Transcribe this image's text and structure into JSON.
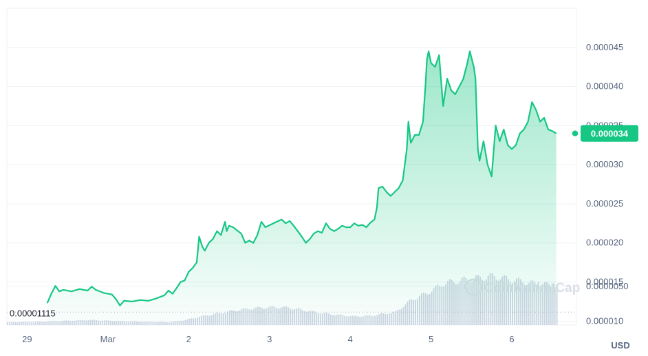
{
  "chart_data": {
    "type": "area",
    "currency": "USD",
    "x_tick_labels": [
      "29",
      "Mar",
      "2",
      "3",
      "4",
      "5",
      "6"
    ],
    "x_tick_positions": [
      0.25,
      1.25,
      2.25,
      3.25,
      4.25,
      5.25,
      6.25
    ],
    "y_tick_labels": [
      "0.000010",
      "0.000015",
      "0.000020",
      "0.000025",
      "0.000030",
      "0.000035",
      "0.000040",
      "0.000045"
    ],
    "y_tick_values": [
      1e-05,
      1.5e-05,
      2e-05,
      2.5e-05,
      3e-05,
      3.5e-05,
      4e-05,
      4.5e-05
    ],
    "ylim": [
      9.5e-06,
      5e-05
    ],
    "xlim": [
      0,
      7.05
    ],
    "reference_price_label": "0.00001115",
    "reference_price": 1.115e-05,
    "current_price_label": "0.000034",
    "current_price": 3.4e-05,
    "volume_axis_label": "0.0000050",
    "volume_axis_value": 5e-06,
    "volume_ylim": [
      0,
      7.5e-06
    ],
    "watermark": "CoinMarketCap",
    "price_series": [
      [
        0.5,
        1.23e-05
      ],
      [
        0.55,
        1.35e-05
      ],
      [
        0.6,
        1.45e-05
      ],
      [
        0.65,
        1.38e-05
      ],
      [
        0.7,
        1.4e-05
      ],
      [
        0.8,
        1.38e-05
      ],
      [
        0.9,
        1.41e-05
      ],
      [
        1.0,
        1.39e-05
      ],
      [
        1.05,
        1.44e-05
      ],
      [
        1.1,
        1.4e-05
      ],
      [
        1.2,
        1.36e-05
      ],
      [
        1.3,
        1.34e-05
      ],
      [
        1.35,
        1.28e-05
      ],
      [
        1.4,
        1.2e-05
      ],
      [
        1.45,
        1.26e-05
      ],
      [
        1.55,
        1.25e-05
      ],
      [
        1.65,
        1.27e-05
      ],
      [
        1.75,
        1.26e-05
      ],
      [
        1.85,
        1.29e-05
      ],
      [
        1.95,
        1.33e-05
      ],
      [
        2.0,
        1.39e-05
      ],
      [
        2.05,
        1.35e-05
      ],
      [
        2.1,
        1.42e-05
      ],
      [
        2.15,
        1.5e-05
      ],
      [
        2.2,
        1.52e-05
      ],
      [
        2.25,
        1.63e-05
      ],
      [
        2.3,
        1.68e-05
      ],
      [
        2.35,
        1.75e-05
      ],
      [
        2.38,
        2.08e-05
      ],
      [
        2.42,
        1.95e-05
      ],
      [
        2.45,
        1.9e-05
      ],
      [
        2.5,
        2e-05
      ],
      [
        2.55,
        2.05e-05
      ],
      [
        2.6,
        2.15e-05
      ],
      [
        2.65,
        2.1e-05
      ],
      [
        2.7,
        2.27e-05
      ],
      [
        2.72,
        2.15e-05
      ],
      [
        2.75,
        2.22e-05
      ],
      [
        2.8,
        2.2e-05
      ],
      [
        2.85,
        2.16e-05
      ],
      [
        2.9,
        2.12e-05
      ],
      [
        2.95,
        2e-05
      ],
      [
        3.0,
        2.03e-05
      ],
      [
        3.05,
        2e-05
      ],
      [
        3.1,
        2.1e-05
      ],
      [
        3.15,
        2.27e-05
      ],
      [
        3.2,
        2.2e-05
      ],
      [
        3.3,
        2.25e-05
      ],
      [
        3.4,
        2.3e-05
      ],
      [
        3.45,
        2.25e-05
      ],
      [
        3.5,
        2.28e-05
      ],
      [
        3.55,
        2.22e-05
      ],
      [
        3.6,
        2.15e-05
      ],
      [
        3.65,
        2.08e-05
      ],
      [
        3.7,
        2e-05
      ],
      [
        3.75,
        2.05e-05
      ],
      [
        3.8,
        2.12e-05
      ],
      [
        3.85,
        2.15e-05
      ],
      [
        3.9,
        2.13e-05
      ],
      [
        3.95,
        2.25e-05
      ],
      [
        4.0,
        2.18e-05
      ],
      [
        4.05,
        2.15e-05
      ],
      [
        4.1,
        2.18e-05
      ],
      [
        4.15,
        2.22e-05
      ],
      [
        4.2,
        2.2e-05
      ],
      [
        4.25,
        2.2e-05
      ],
      [
        4.3,
        2.25e-05
      ],
      [
        4.35,
        2.22e-05
      ],
      [
        4.4,
        2.23e-05
      ],
      [
        4.45,
        2.2e-05
      ],
      [
        4.5,
        2.26e-05
      ],
      [
        4.55,
        2.3e-05
      ],
      [
        4.58,
        2.45e-05
      ],
      [
        4.6,
        2.7e-05
      ],
      [
        4.65,
        2.72e-05
      ],
      [
        4.7,
        2.65e-05
      ],
      [
        4.75,
        2.6e-05
      ],
      [
        4.8,
        2.65e-05
      ],
      [
        4.85,
        2.7e-05
      ],
      [
        4.9,
        2.8e-05
      ],
      [
        4.95,
        3.2e-05
      ],
      [
        4.97,
        3.55e-05
      ],
      [
        5.0,
        3.28e-05
      ],
      [
        5.05,
        3.38e-05
      ],
      [
        5.1,
        3.38e-05
      ],
      [
        5.15,
        3.55e-05
      ],
      [
        5.18,
        4e-05
      ],
      [
        5.2,
        4.35e-05
      ],
      [
        5.22,
        4.45e-05
      ],
      [
        5.25,
        4.3e-05
      ],
      [
        5.3,
        4.25e-05
      ],
      [
        5.35,
        4.4e-05
      ],
      [
        5.38,
        4e-05
      ],
      [
        5.4,
        3.75e-05
      ],
      [
        5.45,
        4.1e-05
      ],
      [
        5.5,
        3.95e-05
      ],
      [
        5.55,
        3.9e-05
      ],
      [
        5.6,
        4e-05
      ],
      [
        5.65,
        4.1e-05
      ],
      [
        5.7,
        4.3e-05
      ],
      [
        5.73,
        4.45e-05
      ],
      [
        5.78,
        4.25e-05
      ],
      [
        5.8,
        4.1e-05
      ],
      [
        5.83,
        3.2e-05
      ],
      [
        5.85,
        3.05e-05
      ],
      [
        5.9,
        3.3e-05
      ],
      [
        5.95,
        3e-05
      ],
      [
        6.0,
        2.85e-05
      ],
      [
        6.05,
        3.5e-05
      ],
      [
        6.1,
        3.3e-05
      ],
      [
        6.15,
        3.45e-05
      ],
      [
        6.2,
        3.25e-05
      ],
      [
        6.25,
        3.2e-05
      ],
      [
        6.3,
        3.25e-05
      ],
      [
        6.35,
        3.4e-05
      ],
      [
        6.4,
        3.45e-05
      ],
      [
        6.45,
        3.55e-05
      ],
      [
        6.5,
        3.8e-05
      ],
      [
        6.55,
        3.7e-05
      ],
      [
        6.6,
        3.55e-05
      ],
      [
        6.65,
        3.6e-05
      ],
      [
        6.7,
        3.45e-05
      ],
      [
        6.75,
        3.43e-05
      ],
      [
        6.8,
        3.4e-05
      ]
    ],
    "volume_series": [
      [
        0.0,
        4e-07
      ],
      [
        0.5,
        5e-07
      ],
      [
        1.0,
        7e-07
      ],
      [
        1.5,
        5e-07
      ],
      [
        2.0,
        4e-07
      ],
      [
        2.2,
        7e-07
      ],
      [
        2.4,
        1.2e-06
      ],
      [
        2.8,
        2e-06
      ],
      [
        3.0,
        2.3e-06
      ],
      [
        3.3,
        2.5e-06
      ],
      [
        3.5,
        2.4e-06
      ],
      [
        3.8,
        1.8e-06
      ],
      [
        4.0,
        1.5e-06
      ],
      [
        4.3,
        1.2e-06
      ],
      [
        4.5,
        1.3e-06
      ],
      [
        4.8,
        1.8e-06
      ],
      [
        5.0,
        3.5e-06
      ],
      [
        5.2,
        4.5e-06
      ],
      [
        5.4,
        5.8e-06
      ],
      [
        5.6,
        6.2e-06
      ],
      [
        5.8,
        6.5e-06
      ],
      [
        6.0,
        6.8e-06
      ],
      [
        6.2,
        6.4e-06
      ],
      [
        6.5,
        5.8e-06
      ],
      [
        6.8,
        5.5e-06
      ]
    ]
  },
  "colors": {
    "line": "#16c784",
    "price_badge_bg": "#16c784",
    "price_badge_text": "#ffffff",
    "grid": "#eff2f5",
    "axis_text": "#58667e",
    "volume_bar": "#cfd6e4",
    "dotted_reference": "#a6b0c3",
    "watermark": "#d9dee7"
  }
}
